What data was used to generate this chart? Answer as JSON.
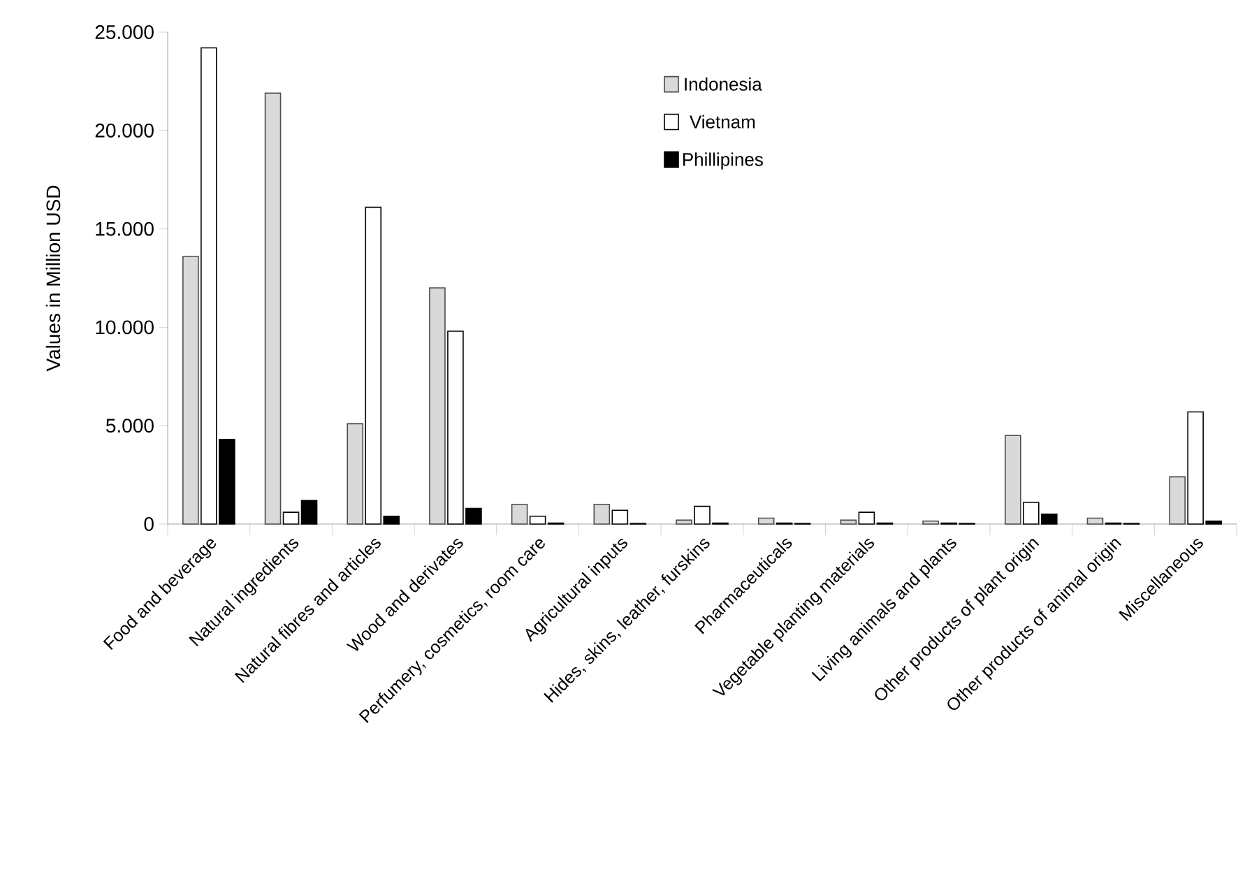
{
  "chart_data": {
    "type": "bar",
    "ylabel": "Values in Million USD",
    "categories": [
      "Food and beverage",
      "Natural ingredients",
      "Natural fibres and articles",
      "Wood and derivates",
      "Perfumery, cosmetics, room care",
      "Agricultural inputs",
      "Hides, skins, leather, furskins",
      "Pharmaceuticals",
      "Vegetable planting materials",
      "Living animals and plants",
      "Other products of plant origin",
      "Other products of animal origin",
      "Miscellaneous"
    ],
    "series": [
      {
        "name": "Indonesia",
        "color": "#d9d9d9",
        "values": [
          13600,
          21900,
          5100,
          12000,
          1000,
          1000,
          200,
          300,
          200,
          150,
          4500,
          300,
          2400
        ]
      },
      {
        "name": "Vietnam",
        "color": "#ffffff",
        "values": [
          24200,
          600,
          16100,
          9800,
          400,
          700,
          900,
          50,
          600,
          50,
          1100,
          50,
          5700
        ]
      },
      {
        "name": "Phillipines",
        "color": "#000000",
        "values": [
          4300,
          1200,
          400,
          800,
          50,
          30,
          50,
          30,
          50,
          30,
          500,
          30,
          150
        ]
      }
    ],
    "ylim": [
      0,
      25000
    ],
    "yticks": [
      0,
      {
        "value": 5000,
        "label": "5.000"
      },
      {
        "value": 10000,
        "label": "10.000"
      },
      {
        "value": 15000,
        "label": "15.000"
      },
      {
        "value": 20000,
        "label": "20.000"
      },
      {
        "value": 25000,
        "label": "25.000"
      }
    ],
    "legend": "top",
    "grid": false
  }
}
